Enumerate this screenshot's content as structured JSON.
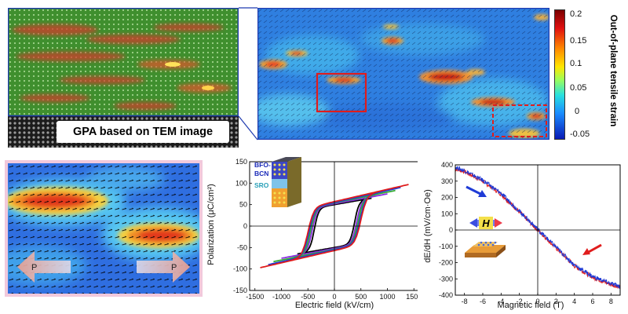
{
  "panels": {
    "gpa_label": "GPA based on TEM image",
    "colorbar": {
      "title": "Out-of-plane tensile strain",
      "ticks": [
        "0.2",
        "0.15",
        "0.1",
        "0.05",
        "0",
        "-0.05"
      ]
    },
    "arrows": {
      "left_label": "P",
      "right_label": "P"
    },
    "inset_hysteresis": {
      "layer1": "BFO-",
      "layer2": "BCN",
      "layer3": "SRO"
    },
    "inset_mag": {
      "field_label": "H"
    }
  },
  "colors": {
    "blue": "#1f3bd6",
    "green": "#33aa33",
    "purple": "#8a2be2",
    "red": "#e01c1c",
    "black": "#000000"
  },
  "chart_data": [
    {
      "type": "line",
      "xlabel": "Electric field (kV/cm)",
      "ylabel": "Polarization (μC/cm²)",
      "xlim": [
        -1600,
        1600
      ],
      "ylim": [
        -150,
        150
      ],
      "xticks": [
        "-1500",
        "-1000",
        "-500",
        "0",
        "500",
        "1000",
        "1500"
      ],
      "yticks": [
        "150",
        "100",
        "50",
        "0",
        "-50",
        "-100",
        "-150"
      ],
      "series": [
        {
          "color": "black",
          "emax": 700,
          "pmax": 65,
          "pr": 50,
          "ec": 380
        },
        {
          "color": "purple",
          "emax": 1000,
          "pmax": 75,
          "pr": 52,
          "ec": 420
        },
        {
          "color": "green",
          "emax": 1150,
          "pmax": 83,
          "pr": 54,
          "ec": 450
        },
        {
          "color": "blue",
          "emax": 1250,
          "pmax": 90,
          "pr": 55,
          "ec": 480
        },
        {
          "color": "red",
          "emax": 1400,
          "pmax": 97,
          "pr": 57,
          "ec": 500
        }
      ]
    },
    {
      "type": "line",
      "xlabel": "Magnetic field (T)",
      "ylabel": "dE/dH (mV/cm·Oe)",
      "xlim": [
        -9,
        9
      ],
      "ylim": [
        -400,
        400
      ],
      "xticks": [
        "-8",
        "-6",
        "-4",
        "-2",
        "0",
        "2",
        "4",
        "6",
        "8"
      ],
      "yticks": [
        "400",
        "300",
        "200",
        "100",
        "0",
        "-100",
        "-200",
        "-300",
        "-400"
      ],
      "series": [
        {
          "color": "red",
          "x": [
            -9,
            -8,
            -6,
            -4,
            -2,
            0,
            2,
            4,
            6,
            8,
            9
          ],
          "y": [
            375,
            360,
            300,
            220,
            110,
            0,
            -110,
            -220,
            -290,
            -335,
            -350
          ]
        },
        {
          "color": "blue",
          "x": [
            -9,
            -8,
            -6,
            -4,
            -2,
            0,
            2,
            4,
            6,
            8,
            9
          ],
          "y": [
            385,
            365,
            305,
            225,
            115,
            5,
            -105,
            -215,
            -285,
            -330,
            -345
          ]
        }
      ]
    }
  ]
}
